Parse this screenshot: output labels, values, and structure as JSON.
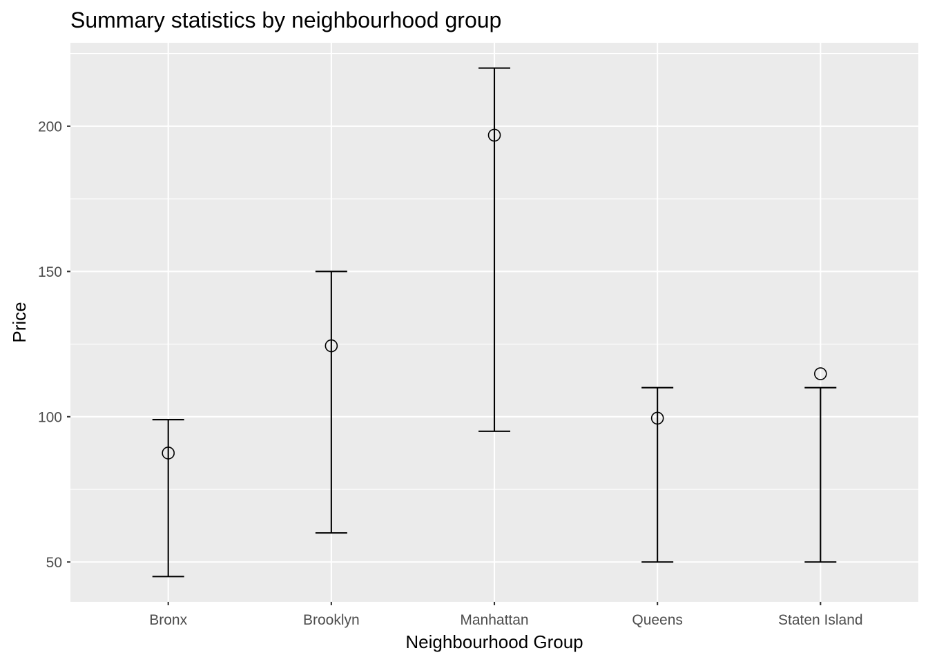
{
  "chart_data": {
    "type": "errorbar",
    "title": "Summary statistics by neighbourhood group",
    "xlabel": "Neighbourhood Group",
    "ylabel": "Price",
    "categories": [
      "Bronx",
      "Brooklyn",
      "Manhattan",
      "Queens",
      "Staten Island"
    ],
    "series": [
      {
        "points": [
          {
            "category": "Bronx",
            "mean": 87.5,
            "lower": 45,
            "upper": 99
          },
          {
            "category": "Brooklyn",
            "mean": 124.4,
            "lower": 60,
            "upper": 150
          },
          {
            "category": "Manhattan",
            "mean": 196.9,
            "lower": 95,
            "upper": 220
          },
          {
            "category": "Queens",
            "mean": 99.5,
            "lower": 50,
            "upper": 110
          },
          {
            "category": "Staten Island",
            "mean": 114.8,
            "lower": 50,
            "upper": 110
          }
        ]
      }
    ],
    "ylim": [
      36.3,
      228.7
    ],
    "yticks": [
      50,
      100,
      150,
      200
    ],
    "grid": true,
    "legend": "none",
    "colors": {
      "panel": "#EBEBEB",
      "grid": "#FFFFFF",
      "marks": "#000000",
      "tick_text": "#4D4D4D"
    }
  }
}
